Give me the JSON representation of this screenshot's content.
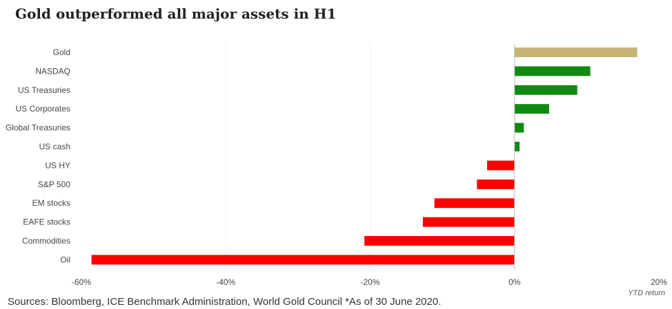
{
  "title": "Gold outperformed all major assets in H1",
  "source_note": "Sources: Bloomberg, ICE Benchmark Administration, World Gold Council  *As of 30 June 2020.",
  "colors": {
    "highlight": "#c8b273",
    "positive": "#128a12",
    "negative": "#ff0000",
    "grid": "#cccccc",
    "text": "#444444"
  },
  "chart_data": {
    "type": "bar",
    "orientation": "horizontal",
    "title": "Gold outperformed all major assets in H1",
    "xlabel": "YTD return",
    "ylabel": "",
    "xlim": [
      -60,
      20
    ],
    "x_ticks": [
      -60,
      -40,
      -20,
      0,
      20
    ],
    "x_tick_labels": [
      "-60%",
      "-40%",
      "-20%",
      "0%",
      "20%"
    ],
    "grid": "vertical dotted",
    "categories": [
      "Gold",
      "NASDAQ",
      "US Treasuries",
      "US Corporates",
      "Global Treasuries",
      "US cash",
      "US HY",
      "S&P 500",
      "EM stocks",
      "EAFE stocks",
      "Commodities",
      "Oil"
    ],
    "values": [
      17.0,
      10.5,
      8.7,
      4.8,
      1.3,
      0.7,
      -3.8,
      -5.2,
      -11.1,
      -12.7,
      -20.8,
      -58.6
    ],
    "bar_colors": [
      "highlight",
      "positive",
      "positive",
      "positive",
      "positive",
      "positive",
      "negative",
      "negative",
      "negative",
      "negative",
      "negative",
      "negative"
    ]
  }
}
